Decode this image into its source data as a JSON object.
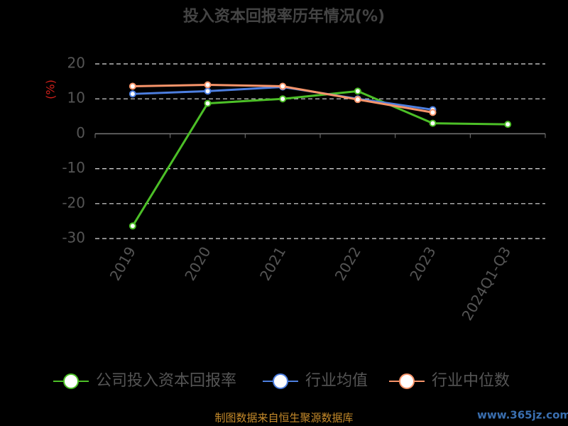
{
  "chart_data": {
    "type": "line",
    "title": "投入资本回报率历年情况(%)",
    "y_label": "(%)",
    "categories": [
      "2019",
      "2020",
      "2021",
      "2022",
      "2023",
      "2024Q1-Q3"
    ],
    "series": [
      {
        "name": "公司投入资本回报率",
        "color": "#4cbf27",
        "values": [
          -26.4,
          8.7,
          10.0,
          12.2,
          3.0,
          2.7
        ]
      },
      {
        "name": "行业均值",
        "color": "#4d7fe0",
        "values": [
          11.4,
          12.2,
          13.4,
          10.0,
          6.9,
          null
        ]
      },
      {
        "name": "行业中位数",
        "color": "#f7946a",
        "values": [
          13.6,
          14.0,
          13.6,
          9.8,
          6.1,
          null
        ]
      }
    ],
    "ylim": [
      -30,
      20
    ],
    "yticks": [
      -30,
      -20,
      -10,
      0,
      10,
      20
    ],
    "grid": true,
    "source": "制图数据来自恒生聚源数据库",
    "watermark": "www.365jz.com"
  }
}
